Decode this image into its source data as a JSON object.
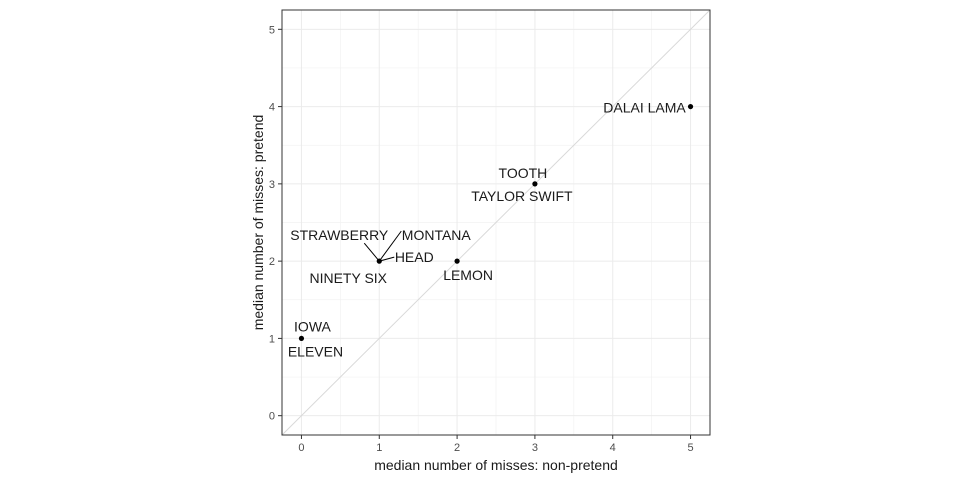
{
  "chart_data": {
    "type": "scatter",
    "xlabel": "median number of misses: non-pretend",
    "ylabel": "median number of misses: pretend",
    "xlim": [
      -0.25,
      5.25
    ],
    "ylim": [
      -0.25,
      5.25
    ],
    "xticks": [
      0,
      1,
      2,
      3,
      4,
      5
    ],
    "yticks": [
      0,
      1,
      2,
      3,
      4,
      5
    ],
    "grid": true,
    "reference_line": "y = x",
    "points": [
      {
        "x": 0,
        "y": 1,
        "labels": [
          "IOWA",
          "ELEVEN"
        ]
      },
      {
        "x": 1,
        "y": 2,
        "labels": [
          "STRAWBERRY",
          "MONTANA",
          "HEAD",
          "NINETY SIX"
        ]
      },
      {
        "x": 2,
        "y": 2,
        "labels": [
          "LEMON"
        ]
      },
      {
        "x": 3,
        "y": 3,
        "labels": [
          "TOOTH",
          "TAYLOR SWIFT"
        ]
      },
      {
        "x": 5,
        "y": 4,
        "labels": [
          "DALAI LAMA"
        ]
      }
    ]
  }
}
